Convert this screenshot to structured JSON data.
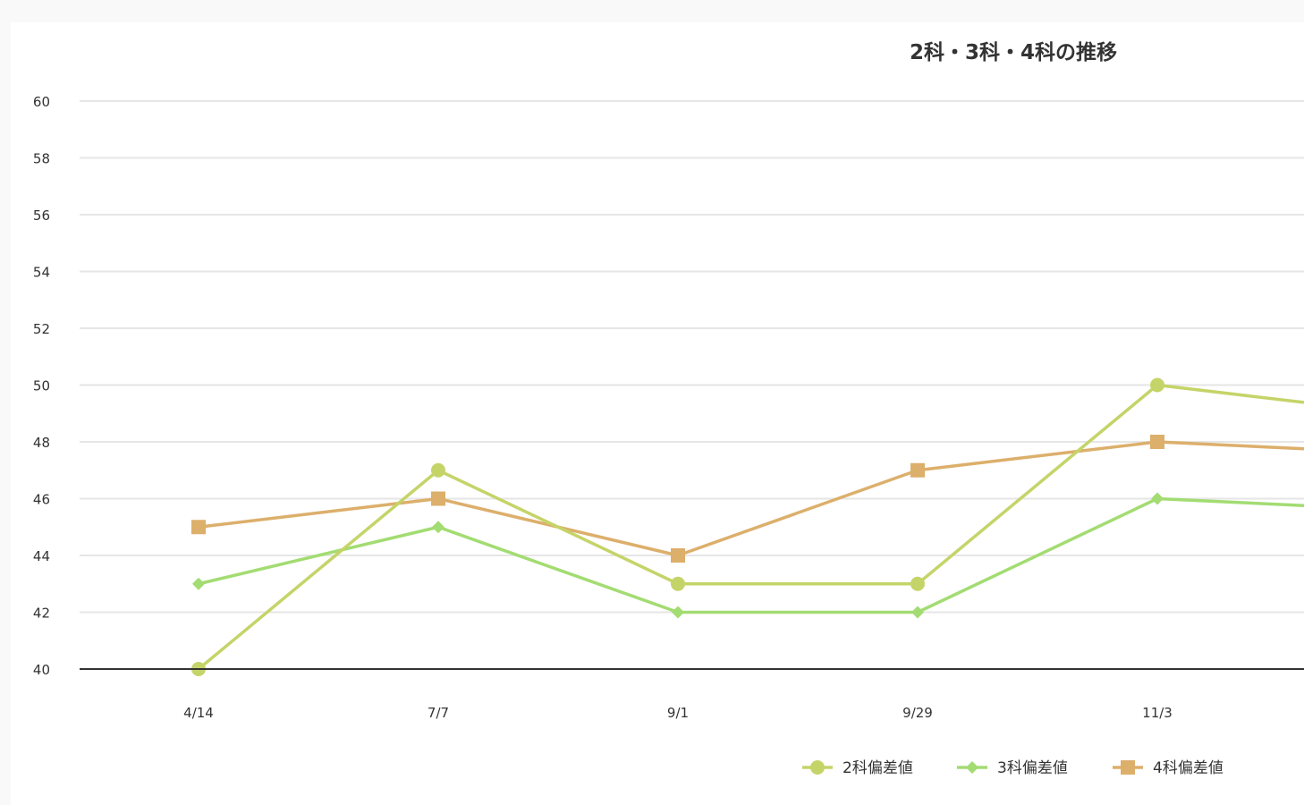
{
  "chart_data": {
    "type": "line",
    "title": "2科・3科・4科の推移",
    "xlabel": "",
    "ylabel": "",
    "categories": [
      "4/14",
      "7/7",
      "9/1",
      "9/29",
      "11/3"
    ],
    "ylim": [
      40,
      60
    ],
    "yticks": [
      40,
      42,
      44,
      46,
      48,
      50,
      52,
      54,
      56,
      58,
      60
    ],
    "grid": true,
    "legend_position": "bottom-right",
    "series": [
      {
        "name": "2科偏差値",
        "values": [
          40,
          47,
          43,
          43,
          50
        ],
        "continues_to": 49,
        "color": "#c5d468",
        "marker": "circle"
      },
      {
        "name": "3科偏差値",
        "values": [
          43,
          45,
          42,
          42,
          46
        ],
        "continues_to": 45.6,
        "color": "#a3dc72",
        "marker": "diamond"
      },
      {
        "name": "4科偏差値",
        "values": [
          45,
          46,
          44,
          47,
          48
        ],
        "continues_to": 47.6,
        "color": "#dcaf6b",
        "marker": "square"
      }
    ]
  }
}
